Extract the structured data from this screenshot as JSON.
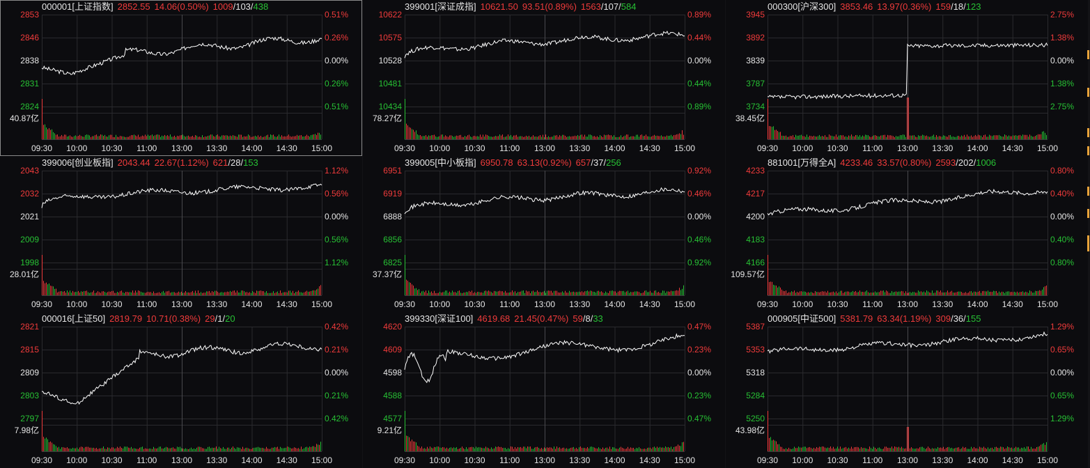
{
  "colors": {
    "up": "#f03b3b",
    "down": "#27c134",
    "line": "#ffffff",
    "grid": "#2a2a2e",
    "text": "#e6e6e6"
  },
  "time_labels": [
    "09:30",
    "10:00",
    "10:30",
    "11:00",
    "13:00",
    "13:30",
    "14:00",
    "14:30",
    "15:00"
  ],
  "panels": [
    {
      "code": "000001[上证指数]",
      "price": "2852.55",
      "change": "14.06(0.50%)",
      "up": "1009",
      "flat": "103",
      "down": "438",
      "left_ticks": [
        "2853",
        "2846",
        "2838",
        "2831",
        "2824"
      ],
      "right_ticks": [
        "0.51%",
        "0.26%",
        "0.00%",
        "0.26%",
        "0.51%"
      ],
      "volume": "40.87亿",
      "shape": "a",
      "selected": true
    },
    {
      "code": "399001[深证成指]",
      "price": "10621.50",
      "change": "93.51(0.89%)",
      "up": "1563",
      "flat": "107",
      "down": "584",
      "left_ticks": [
        "10622",
        "10575",
        "10528",
        "10481",
        "10434"
      ],
      "right_ticks": [
        "0.89%",
        "0.44%",
        "0.00%",
        "0.44%",
        "0.89%"
      ],
      "volume": "78.27亿",
      "shape": "b",
      "selected": false
    },
    {
      "code": "000300[沪深300]",
      "price": "3853.46",
      "change": "13.97(0.36%)",
      "up": "159",
      "flat": "18",
      "down": "123",
      "left_ticks": [
        "3945",
        "3892",
        "3839",
        "3787",
        "3734"
      ],
      "right_ticks": [
        "2.75%",
        "1.38%",
        "0.00%",
        "1.38%",
        "2.75%"
      ],
      "volume": "38.45亿",
      "shape": "c",
      "selected": false
    },
    {
      "code": "399006[创业板指]",
      "price": "2043.44",
      "change": "22.67(1.12%)",
      "up": "621",
      "flat": "28",
      "down": "153",
      "left_ticks": [
        "2043",
        "2032",
        "2021",
        "2009",
        "1998"
      ],
      "right_ticks": [
        "1.12%",
        "0.56%",
        "0.00%",
        "0.56%",
        "1.12%"
      ],
      "volume": "28.01亿",
      "shape": "d",
      "selected": false
    },
    {
      "code": "399005[中小板指]",
      "price": "6950.78",
      "change": "63.13(0.92%)",
      "up": "657",
      "flat": "37",
      "down": "256",
      "left_ticks": [
        "6951",
        "6919",
        "6888",
        "6856",
        "6825"
      ],
      "right_ticks": [
        "0.92%",
        "0.46%",
        "0.00%",
        "0.46%",
        "0.92%"
      ],
      "volume": "37.37亿",
      "shape": "b",
      "selected": false
    },
    {
      "code": "881001[万得全A]",
      "price": "4233.46",
      "change": "33.57(0.80%)",
      "up": "2593",
      "flat": "202",
      "down": "1006",
      "left_ticks": [
        "4233",
        "4217",
        "4200",
        "4183",
        "4166"
      ],
      "right_ticks": [
        "0.80%",
        "0.40%",
        "0.00%",
        "0.40%",
        "0.80%"
      ],
      "volume": "109.57亿",
      "shape": "e",
      "selected": false
    },
    {
      "code": "000016[上证50]",
      "price": "2819.79",
      "change": "10.71(0.38%)",
      "up": "29",
      "flat": "1",
      "down": "20",
      "left_ticks": [
        "2821",
        "2815",
        "2809",
        "2803",
        "2797"
      ],
      "right_ticks": [
        "0.42%",
        "0.21%",
        "0.00%",
        "0.21%",
        "0.42%"
      ],
      "volume": "7.98亿",
      "shape": "f",
      "selected": false
    },
    {
      "code": "399330[深证100]",
      "price": "4619.68",
      "change": "21.45(0.47%)",
      "up": "59",
      "flat": "8",
      "down": "33",
      "left_ticks": [
        "4620",
        "4609",
        "4598",
        "4588",
        "4577"
      ],
      "right_ticks": [
        "0.47%",
        "0.23%",
        "0.00%",
        "0.23%",
        "0.47%"
      ],
      "volume": "9.21亿",
      "shape": "g",
      "selected": false
    },
    {
      "code": "000905[中证500]",
      "price": "5381.79",
      "change": "63.34(1.19%)",
      "up": "309",
      "flat": "36",
      "down": "155",
      "left_ticks": [
        "5387",
        "5353",
        "5318",
        "5284",
        "5250"
      ],
      "right_ticks": [
        "1.29%",
        "0.65%",
        "0.00%",
        "0.65%",
        "1.29%"
      ],
      "volume": "43.98亿",
      "shape": "h",
      "selected": false
    }
  ]
}
